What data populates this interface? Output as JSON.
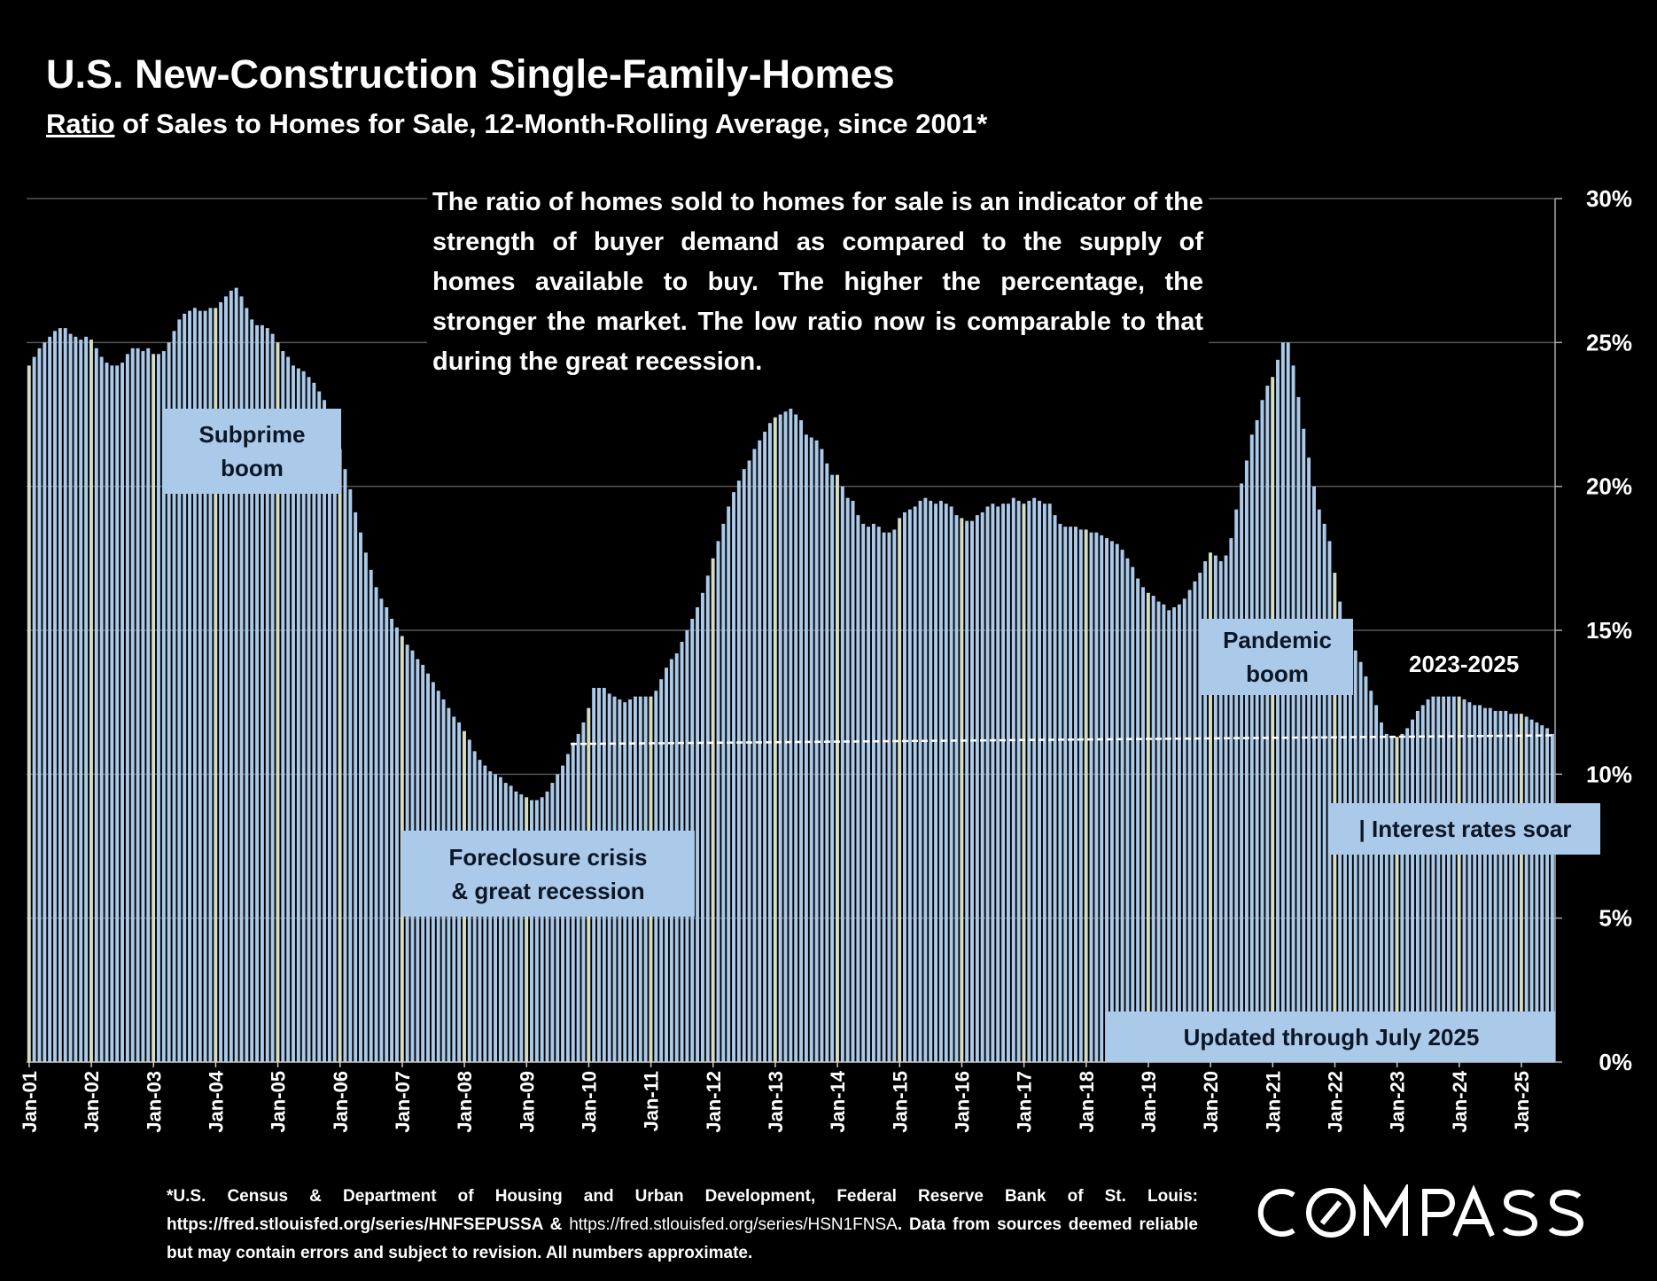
{
  "header": {
    "title": "U.S. New-Construction Single-Family-Homes",
    "subtitle_underlined": "Ratio",
    "subtitle_rest": " of Sales to Homes for Sale, 12-Month-Rolling Average, since 2001*"
  },
  "annotation": "The ratio of homes sold to homes for sale is an indicator of the strength of buyer demand as compared to the supply of homes available to buy. The higher the percentage, the stronger the market. The low ratio now is comparable to that during the great recession.",
  "labels": {
    "subprime_1": "Subprime",
    "subprime_2": "boom",
    "foreclosure_1": "Foreclosure crisis",
    "foreclosure_2": "& great recession",
    "pandemic_1": "Pandemic",
    "pandemic_2": "boom",
    "period": "2023-2025",
    "rates": "| Interest rates soar",
    "updated": "Updated through July 2025"
  },
  "footnote": {
    "part1": "*U.S. Census & Department of Housing and Urban Development, Federal Reserve Bank of St. Louis: https://fred.stlouisfed.org/series/HNFSEPUSSA & ",
    "part2": "https://fred.stlouisfed.org/series/HSN1FNSA",
    "part3": ". Data from sources deemed reliable but may contain errors and subject to revision. All numbers approximate."
  },
  "logo": "COMPASS",
  "colors": {
    "bar": "#abc9e8",
    "bar_january": "#d4dcc4",
    "background": "#000000",
    "grid": "#555555",
    "reference_line": "#ffffff"
  },
  "chart_data": {
    "type": "bar",
    "start": "Jan-01",
    "end": "Jul-25",
    "frequency": "monthly",
    "yaxis_side": "right",
    "ylim": [
      0,
      30
    ],
    "yticks": [
      "0%",
      "5%",
      "10%",
      "15%",
      "20%",
      "25%",
      "30%"
    ],
    "ytick_values": [
      0,
      5,
      10,
      15,
      20,
      25,
      30
    ],
    "xticks": [
      "Jan-01",
      "Jan-02",
      "Jan-03",
      "Jan-04",
      "Jan-05",
      "Jan-06",
      "Jan-07",
      "Jan-08",
      "Jan-09",
      "Jan-10",
      "Jan-11",
      "Jan-12",
      "Jan-13",
      "Jan-14",
      "Jan-15",
      "Jan-16",
      "Jan-17",
      "Jan-18",
      "Jan-19",
      "Jan-20",
      "Jan-21",
      "Jan-22",
      "Jan-23",
      "Jan-24",
      "Jan-25"
    ],
    "grid": true,
    "values": [
      24.2,
      24.5,
      24.8,
      25.0,
      25.2,
      25.4,
      25.5,
      25.5,
      25.3,
      25.2,
      25.1,
      25.2,
      25.1,
      24.8,
      24.5,
      24.3,
      24.2,
      24.2,
      24.3,
      24.6,
      24.8,
      24.8,
      24.7,
      24.8,
      24.6,
      24.6,
      24.7,
      25.0,
      25.4,
      25.8,
      26.0,
      26.1,
      26.2,
      26.1,
      26.1,
      26.2,
      26.2,
      26.4,
      26.6,
      26.8,
      26.9,
      26.6,
      26.2,
      25.8,
      25.6,
      25.6,
      25.5,
      25.3,
      25.0,
      24.7,
      24.5,
      24.2,
      24.1,
      24.0,
      23.8,
      23.6,
      23.3,
      23.0,
      22.6,
      22.0,
      21.3,
      20.6,
      19.9,
      19.1,
      18.4,
      17.7,
      17.1,
      16.5,
      16.1,
      15.8,
      15.4,
      15.1,
      14.8,
      14.5,
      14.3,
      14.0,
      13.8,
      13.5,
      13.2,
      12.9,
      12.6,
      12.3,
      12.0,
      11.8,
      11.5,
      11.2,
      10.8,
      10.5,
      10.3,
      10.1,
      10.0,
      9.9,
      9.7,
      9.6,
      9.4,
      9.3,
      9.2,
      9.1,
      9.1,
      9.2,
      9.4,
      9.7,
      10.0,
      10.3,
      10.7,
      11.1,
      11.4,
      11.8,
      12.3,
      13.0,
      13.0,
      13.0,
      12.8,
      12.7,
      12.6,
      12.5,
      12.6,
      12.7,
      12.7,
      12.7,
      12.7,
      12.9,
      13.3,
      13.7,
      14.0,
      14.2,
      14.6,
      15.0,
      15.4,
      15.8,
      16.3,
      16.9,
      17.5,
      18.1,
      18.7,
      19.3,
      19.8,
      20.2,
      20.6,
      20.9,
      21.3,
      21.6,
      21.9,
      22.2,
      22.4,
      22.5,
      22.6,
      22.7,
      22.5,
      22.3,
      21.8,
      21.7,
      21.6,
      21.3,
      20.8,
      20.4,
      20.4,
      20.0,
      19.6,
      19.5,
      19.0,
      18.7,
      18.6,
      18.7,
      18.6,
      18.4,
      18.4,
      18.5,
      18.9,
      19.1,
      19.2,
      19.3,
      19.5,
      19.6,
      19.5,
      19.4,
      19.5,
      19.4,
      19.3,
      19.0,
      18.9,
      18.8,
      18.8,
      19.0,
      19.1,
      19.3,
      19.4,
      19.3,
      19.4,
      19.4,
      19.6,
      19.5,
      19.4,
      19.5,
      19.6,
      19.5,
      19.4,
      19.4,
      19.0,
      18.7,
      18.6,
      18.6,
      18.6,
      18.5,
      18.5,
      18.4,
      18.4,
      18.3,
      18.2,
      18.1,
      18.0,
      17.8,
      17.5,
      17.2,
      16.8,
      16.5,
      16.3,
      16.2,
      16.0,
      15.9,
      15.7,
      15.8,
      15.9,
      16.1,
      16.4,
      16.7,
      17.0,
      17.4,
      17.7,
      17.6,
      17.4,
      17.6,
      18.2,
      19.2,
      20.1,
      20.9,
      21.8,
      22.3,
      23.0,
      23.5,
      23.8,
      24.4,
      25.0,
      25.0,
      24.2,
      23.1,
      22.0,
      21.0,
      20.0,
      19.2,
      18.7,
      18.1,
      17.0,
      16.0,
      15.4,
      14.9,
      14.3,
      13.9,
      13.4,
      12.9,
      12.4,
      11.8,
      11.4,
      11.3,
      11.3,
      11.4,
      11.6,
      11.9,
      12.2,
      12.4,
      12.6,
      12.7,
      12.7,
      12.7,
      12.7,
      12.7,
      12.7,
      12.6,
      12.5,
      12.4,
      12.4,
      12.3,
      12.3,
      12.2,
      12.2,
      12.2,
      12.1,
      12.1,
      12.1,
      12.0,
      11.9,
      11.8,
      11.7,
      11.6,
      11.4
    ],
    "reference_line": {
      "style": "dashed",
      "from": {
        "x": "Oct-09",
        "y": 11.05
      },
      "to": {
        "x": "Jul-25",
        "y": 11.35
      }
    }
  }
}
